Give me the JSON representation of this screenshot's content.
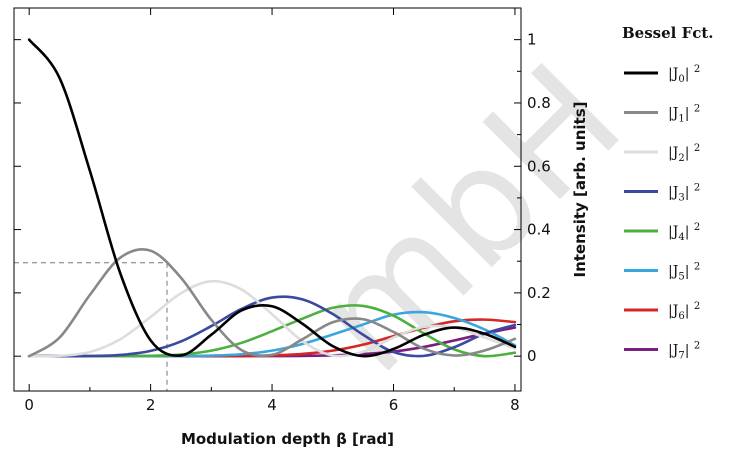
{
  "chart_data": {
    "type": "line",
    "title": "",
    "xlabel": "Modulation depth β [rad]",
    "ylabel": "Intensity [arb. units]",
    "xlim": [
      -0.25,
      8.1
    ],
    "ylim": [
      -0.11,
      1.1
    ],
    "x_ticks": [
      "0",
      "2",
      "4",
      "6",
      "8"
    ],
    "y_ticks": [
      "0",
      "0.2",
      "0.4",
      "0.6",
      "0.8",
      "1"
    ],
    "y_axis_side": "right",
    "legend": {
      "title": "Bessel Fct.",
      "placement": "right"
    },
    "x": [
      0,
      0.5,
      1,
      1.5,
      2,
      2.5,
      3,
      3.5,
      4,
      4.5,
      5,
      5.5,
      6,
      6.5,
      7,
      7.5,
      8
    ],
    "series": [
      {
        "name": "|J0| 2",
        "order": 0,
        "color": "#000000",
        "values": [
          1,
          0.8789,
          0.5855,
          0.262,
          0.0499,
          0.0023,
          0.0678,
          0.1448,
          0.1577,
          0.1024,
          0.0317,
          0.0002,
          0.0226,
          0.0675,
          0.0903,
          0.0708,
          0.0295
        ]
      },
      {
        "name": "|J1| 2",
        "order": 1,
        "color": "#888888",
        "values": [
          0,
          0.0587,
          0.1936,
          0.3111,
          0.3333,
          0.2479,
          0.1149,
          0.0188,
          0.0043,
          0.0533,
          0.1071,
          0.1166,
          0.0765,
          0.0238,
          0.0022,
          0.0181,
          0.0548
        ]
      },
      {
        "name": "|J2| 2",
        "order": 2,
        "color": "#dddddd",
        "values": [
          0,
          0.001,
          0.0132,
          0.0536,
          0.1238,
          0.1989,
          0.2366,
          0.2104,
          0.1324,
          0.0474,
          0.0021,
          0.0139,
          0.0589,
          0.0925,
          0.0906,
          0.0592,
          0.0242
        ]
      },
      {
        "name": "|J3| 2",
        "order": 3,
        "color": "#3b4a9f",
        "values": [
          0,
          0,
          0.0004,
          0.0038,
          0.0167,
          0.0466,
          0.0951,
          0.1495,
          0.1852,
          0.1794,
          0.1331,
          0.0676,
          0.0131,
          0.001,
          0.0283,
          0.071,
          0.0985
        ]
      },
      {
        "name": "|J4| 2",
        "order": 4,
        "color": "#4caf3e",
        "values": [
          0,
          0,
          0,
          0.0002,
          0.0012,
          0.0051,
          0.0175,
          0.0422,
          0.0789,
          0.1184,
          0.1529,
          0.1587,
          0.1281,
          0.0719,
          0.0215,
          0.0001,
          0.0111
        ]
      },
      {
        "name": "|J5| 2",
        "order": 5,
        "color": "#3aa6e0",
        "values": [
          0,
          0,
          0,
          0,
          0.0001,
          0.0005,
          0.0019,
          0.0061,
          0.0175,
          0.0386,
          0.0686,
          0.1001,
          0.1314,
          0.1389,
          0.1206,
          0.0844,
          0.0345
        ]
      },
      {
        "name": "|J6| 2",
        "order": 6,
        "color": "#d62728",
        "values": [
          0,
          0,
          0,
          0,
          0,
          0,
          0.0002,
          0.0008,
          0.0025,
          0.0071,
          0.0175,
          0.0364,
          0.0633,
          0.0897,
          0.1101,
          0.1155,
          0.1077
        ]
      },
      {
        "name": "|J7| 2",
        "order": 7,
        "color": "#7b1f7e",
        "values": [
          0,
          0,
          0,
          0,
          0,
          0,
          0,
          0.0001,
          0.0003,
          0.0009,
          0.0026,
          0.0066,
          0.0146,
          0.0293,
          0.0495,
          0.0714,
          0.0904
        ]
      }
    ],
    "reference_guide": {
      "x": 2.27,
      "y": 0.295
    },
    "grid": false
  }
}
